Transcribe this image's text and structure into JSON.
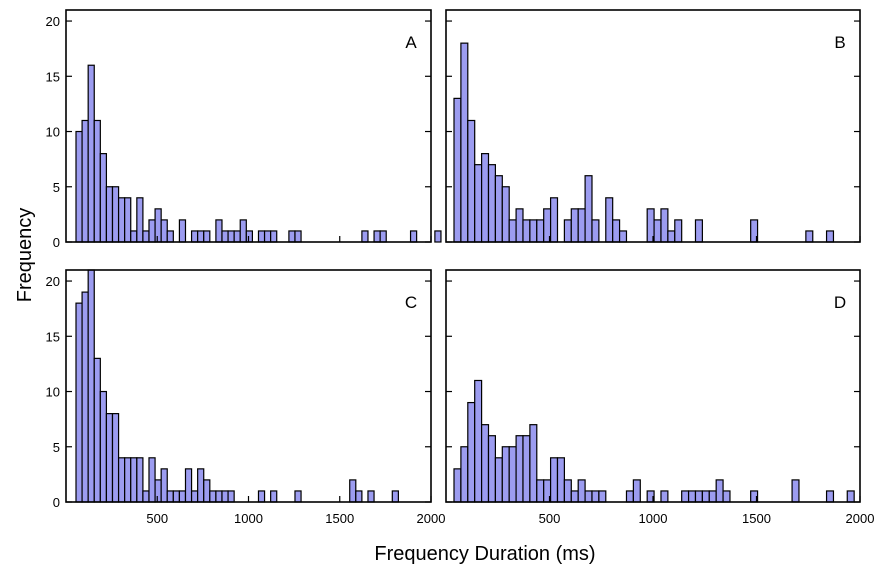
{
  "chart_data": {
    "type": "bar",
    "bar_color": "#9c9cf0",
    "xlabel": "Frequency Duration (ms)",
    "ylabel": "Frequency",
    "x_ticks": [
      500,
      1000,
      1500,
      2000
    ],
    "y_ticks": [
      0,
      5,
      10,
      15,
      20
    ],
    "bin_width_ms": 33.33,
    "panels": [
      {
        "label": "A",
        "x_origin_ms": 0,
        "xlim": [
          0,
          2000
        ],
        "ylim": [
          0,
          21
        ],
        "values": [
          10,
          11,
          16,
          11,
          8,
          5,
          5,
          4,
          4,
          1,
          4,
          1,
          2,
          3,
          2,
          1,
          0,
          2,
          0,
          1,
          1,
          1,
          0,
          2,
          1,
          1,
          1,
          2,
          1,
          0,
          1,
          1,
          1,
          0,
          0,
          1,
          1,
          0,
          0,
          0,
          0,
          0,
          0,
          0,
          0,
          0,
          0,
          1,
          0,
          1,
          1,
          0,
          0,
          0,
          0,
          1,
          0,
          0,
          0,
          1
        ]
      },
      {
        "label": "B",
        "x_origin_ms": 0,
        "xlim": [
          0,
          2000
        ],
        "ylim": [
          0,
          21
        ],
        "values": [
          13,
          18,
          11,
          7,
          8,
          7,
          6,
          5,
          2,
          3,
          2,
          2,
          2,
          3,
          4,
          0,
          2,
          3,
          3,
          6,
          2,
          0,
          4,
          2,
          1,
          0,
          0,
          0,
          3,
          2,
          3,
          1,
          2,
          0,
          0,
          2,
          0,
          0,
          0,
          0,
          0,
          0,
          0,
          2,
          0,
          0,
          0,
          0,
          0,
          0,
          0,
          1,
          0,
          0,
          1
        ]
      },
      {
        "label": "C",
        "x_origin_ms": 0,
        "xlim": [
          0,
          2000
        ],
        "ylim": [
          0,
          21
        ],
        "values": [
          18,
          19,
          21,
          13,
          10,
          8,
          8,
          4,
          4,
          4,
          4,
          1,
          4,
          2,
          3,
          1,
          1,
          1,
          3,
          1,
          3,
          2,
          1,
          1,
          1,
          1,
          0,
          0,
          0,
          0,
          1,
          0,
          1,
          0,
          0,
          0,
          1,
          0,
          0,
          0,
          0,
          0,
          0,
          0,
          0,
          2,
          1,
          0,
          1,
          0,
          0,
          0,
          1
        ]
      },
      {
        "label": "D",
        "x_origin_ms": 0,
        "xlim": [
          0,
          2000
        ],
        "ylim": [
          0,
          21
        ],
        "values": [
          3,
          5,
          9,
          11,
          7,
          6,
          4,
          5,
          5,
          6,
          6,
          7,
          2,
          2,
          4,
          4,
          2,
          1,
          2,
          1,
          1,
          1,
          0,
          0,
          0,
          1,
          2,
          0,
          1,
          0,
          1,
          0,
          0,
          1,
          1,
          1,
          1,
          1,
          2,
          1,
          0,
          0,
          0,
          1,
          0,
          0,
          0,
          0,
          0,
          2,
          0,
          0,
          0,
          0,
          1,
          0,
          0,
          1
        ]
      }
    ]
  }
}
